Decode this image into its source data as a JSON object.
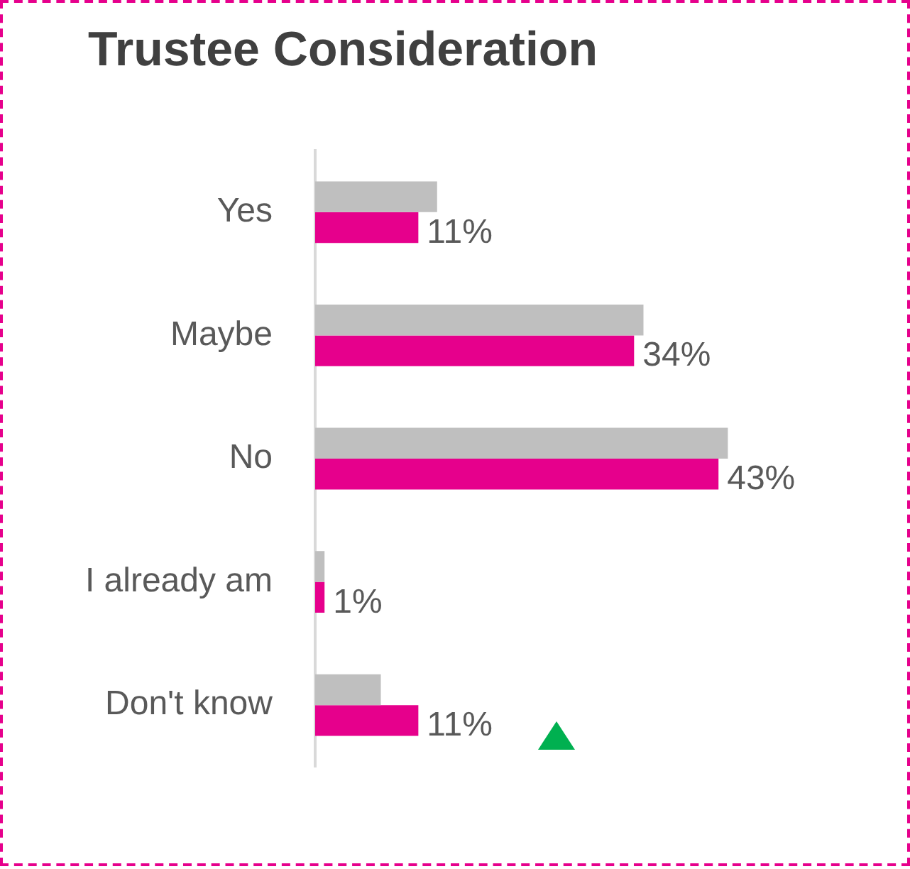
{
  "chart_data": {
    "type": "bar",
    "orientation": "horizontal",
    "title": "Trustee Consideration",
    "categories": [
      "Yes",
      "Maybe",
      "No",
      "I already am",
      "Don't know"
    ],
    "series": [
      {
        "color": "#bfbfbf",
        "values": [
          13,
          35,
          44,
          1,
          7
        ]
      },
      {
        "color": "#e6008c",
        "values": [
          11,
          34,
          43,
          1,
          11
        ],
        "value_labels": [
          "11%",
          "34%",
          "43%",
          "1%",
          "11%"
        ]
      }
    ],
    "legend": false,
    "grid": false
  }
}
